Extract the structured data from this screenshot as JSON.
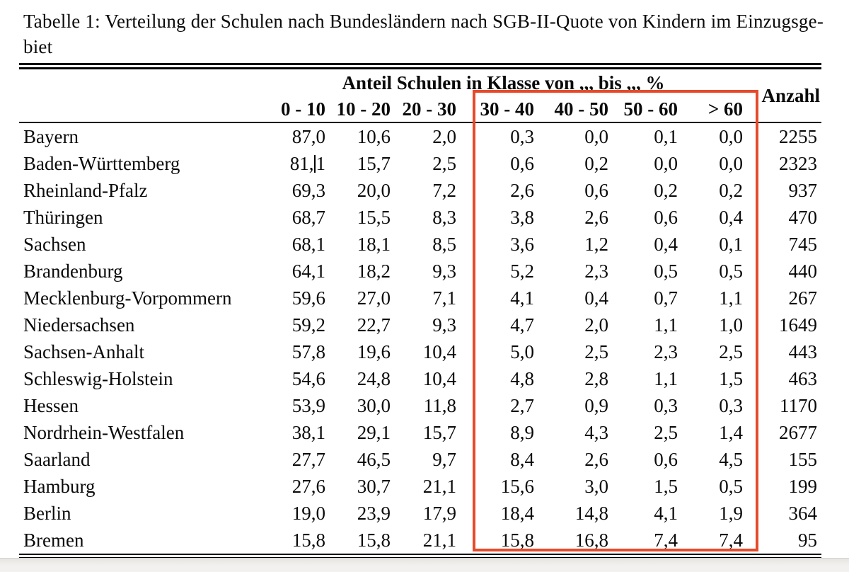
{
  "caption": {
    "line1": "Tabelle 1: Verteilung der Schulen nach Bundesländern nach SGB-II-Quote von Kindern im Einzugsge-",
    "line2": "biet"
  },
  "table": {
    "group_header": "Anteil Schulen in Klasse von ,,, bis ,,, %",
    "anzahl_header": "Anzahl",
    "class_columns": [
      "0 - 10",
      "10 - 20",
      "20 - 30",
      "30 - 40",
      "40 - 50",
      "50 - 60",
      "> 60"
    ],
    "rows": [
      {
        "land": "Bayern",
        "values": [
          "87,0",
          "10,6",
          "2,0",
          "0,3",
          "0,0",
          "0,1",
          "0,0"
        ],
        "anzahl": "2255"
      },
      {
        "land": "Baden-Württemberg",
        "values": [
          "81,1",
          "15,7",
          "2,5",
          "0,6",
          "0,2",
          "0,0",
          "0,0"
        ],
        "anzahl": "2323"
      },
      {
        "land": "Rheinland-Pfalz",
        "values": [
          "69,3",
          "20,0",
          "7,2",
          "2,6",
          "0,6",
          "0,2",
          "0,2"
        ],
        "anzahl": "937"
      },
      {
        "land": "Thüringen",
        "values": [
          "68,7",
          "15,5",
          "8,3",
          "3,8",
          "2,6",
          "0,6",
          "0,4"
        ],
        "anzahl": "470"
      },
      {
        "land": "Sachsen",
        "values": [
          "68,1",
          "18,1",
          "8,5",
          "3,6",
          "1,2",
          "0,4",
          "0,1"
        ],
        "anzahl": "745"
      },
      {
        "land": "Brandenburg",
        "values": [
          "64,1",
          "18,2",
          "9,3",
          "5,2",
          "2,3",
          "0,5",
          "0,5"
        ],
        "anzahl": "440"
      },
      {
        "land": "Mecklenburg-Vorpommern",
        "values": [
          "59,6",
          "27,0",
          "7,1",
          "4,1",
          "0,4",
          "0,7",
          "1,1"
        ],
        "anzahl": "267"
      },
      {
        "land": "Niedersachsen",
        "values": [
          "59,2",
          "22,7",
          "9,3",
          "4,7",
          "2,0",
          "1,1",
          "1,0"
        ],
        "anzahl": "1649"
      },
      {
        "land": "Sachsen-Anhalt",
        "values": [
          "57,8",
          "19,6",
          "10,4",
          "5,0",
          "2,5",
          "2,3",
          "2,5"
        ],
        "anzahl": "443"
      },
      {
        "land": "Schleswig-Holstein",
        "values": [
          "54,6",
          "24,8",
          "10,4",
          "4,8",
          "2,8",
          "1,1",
          "1,5"
        ],
        "anzahl": "463"
      },
      {
        "land": "Hessen",
        "values": [
          "53,9",
          "30,0",
          "11,8",
          "2,7",
          "0,9",
          "0,3",
          "0,3"
        ],
        "anzahl": "1170"
      },
      {
        "land": "Nordrhein-Westfalen",
        "values": [
          "38,1",
          "29,1",
          "15,7",
          "8,9",
          "4,3",
          "2,5",
          "1,4"
        ],
        "anzahl": "2677"
      },
      {
        "land": "Saarland",
        "values": [
          "27,7",
          "46,5",
          "9,7",
          "8,4",
          "2,6",
          "0,6",
          "4,5"
        ],
        "anzahl": "155"
      },
      {
        "land": "Hamburg",
        "values": [
          "27,6",
          "30,7",
          "21,1",
          "15,6",
          "3,0",
          "1,5",
          "0,5"
        ],
        "anzahl": "199"
      },
      {
        "land": "Berlin",
        "values": [
          "19,0",
          "23,9",
          "17,9",
          "18,4",
          "14,8",
          "4,1",
          "1,9"
        ],
        "anzahl": "364"
      },
      {
        "land": "Bremen",
        "values": [
          "15,8",
          "15,8",
          "21,1",
          "15,8",
          "16,8",
          "7,4",
          "7,4"
        ],
        "anzahl": "95"
      }
    ],
    "text_cursor": {
      "row_index": 1,
      "col_index": 0,
      "before": "81,",
      "after": "1"
    }
  },
  "annotation": {
    "highlight_color": "#e64a2b",
    "highlighted_columns": [
      "30 - 40",
      "40 - 50",
      "50 - 60",
      "> 60"
    ]
  }
}
